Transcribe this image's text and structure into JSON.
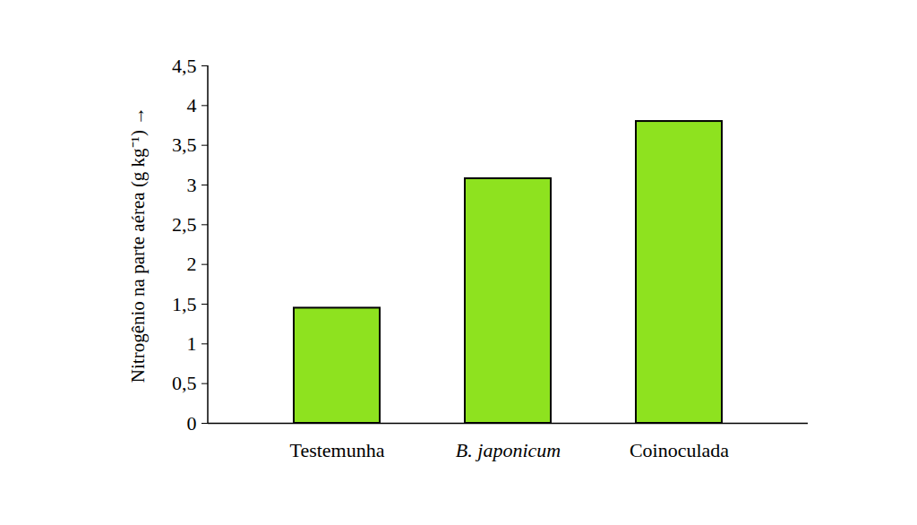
{
  "chart_data": {
    "type": "bar",
    "ylabel": "Nitrogênio na parte aérea (g kg⁻¹)",
    "categories": [
      "Testemunha",
      "B. japonicum",
      "Coinoculada"
    ],
    "values": [
      1.45,
      3.08,
      3.8
    ],
    "color": "#8ee21f",
    "ylim": [
      0,
      4.5
    ],
    "yticks": [
      0,
      {
        "value": 0.5,
        "label": "0,5"
      },
      1,
      {
        "value": 1.5,
        "label": "1,5"
      },
      2,
      {
        "value": 2.5,
        "label": "2,5"
      },
      3,
      {
        "value": 3.5,
        "label": "3,5"
      },
      4,
      {
        "value": 4.5,
        "label": "4,5"
      }
    ],
    "grid": false
  }
}
